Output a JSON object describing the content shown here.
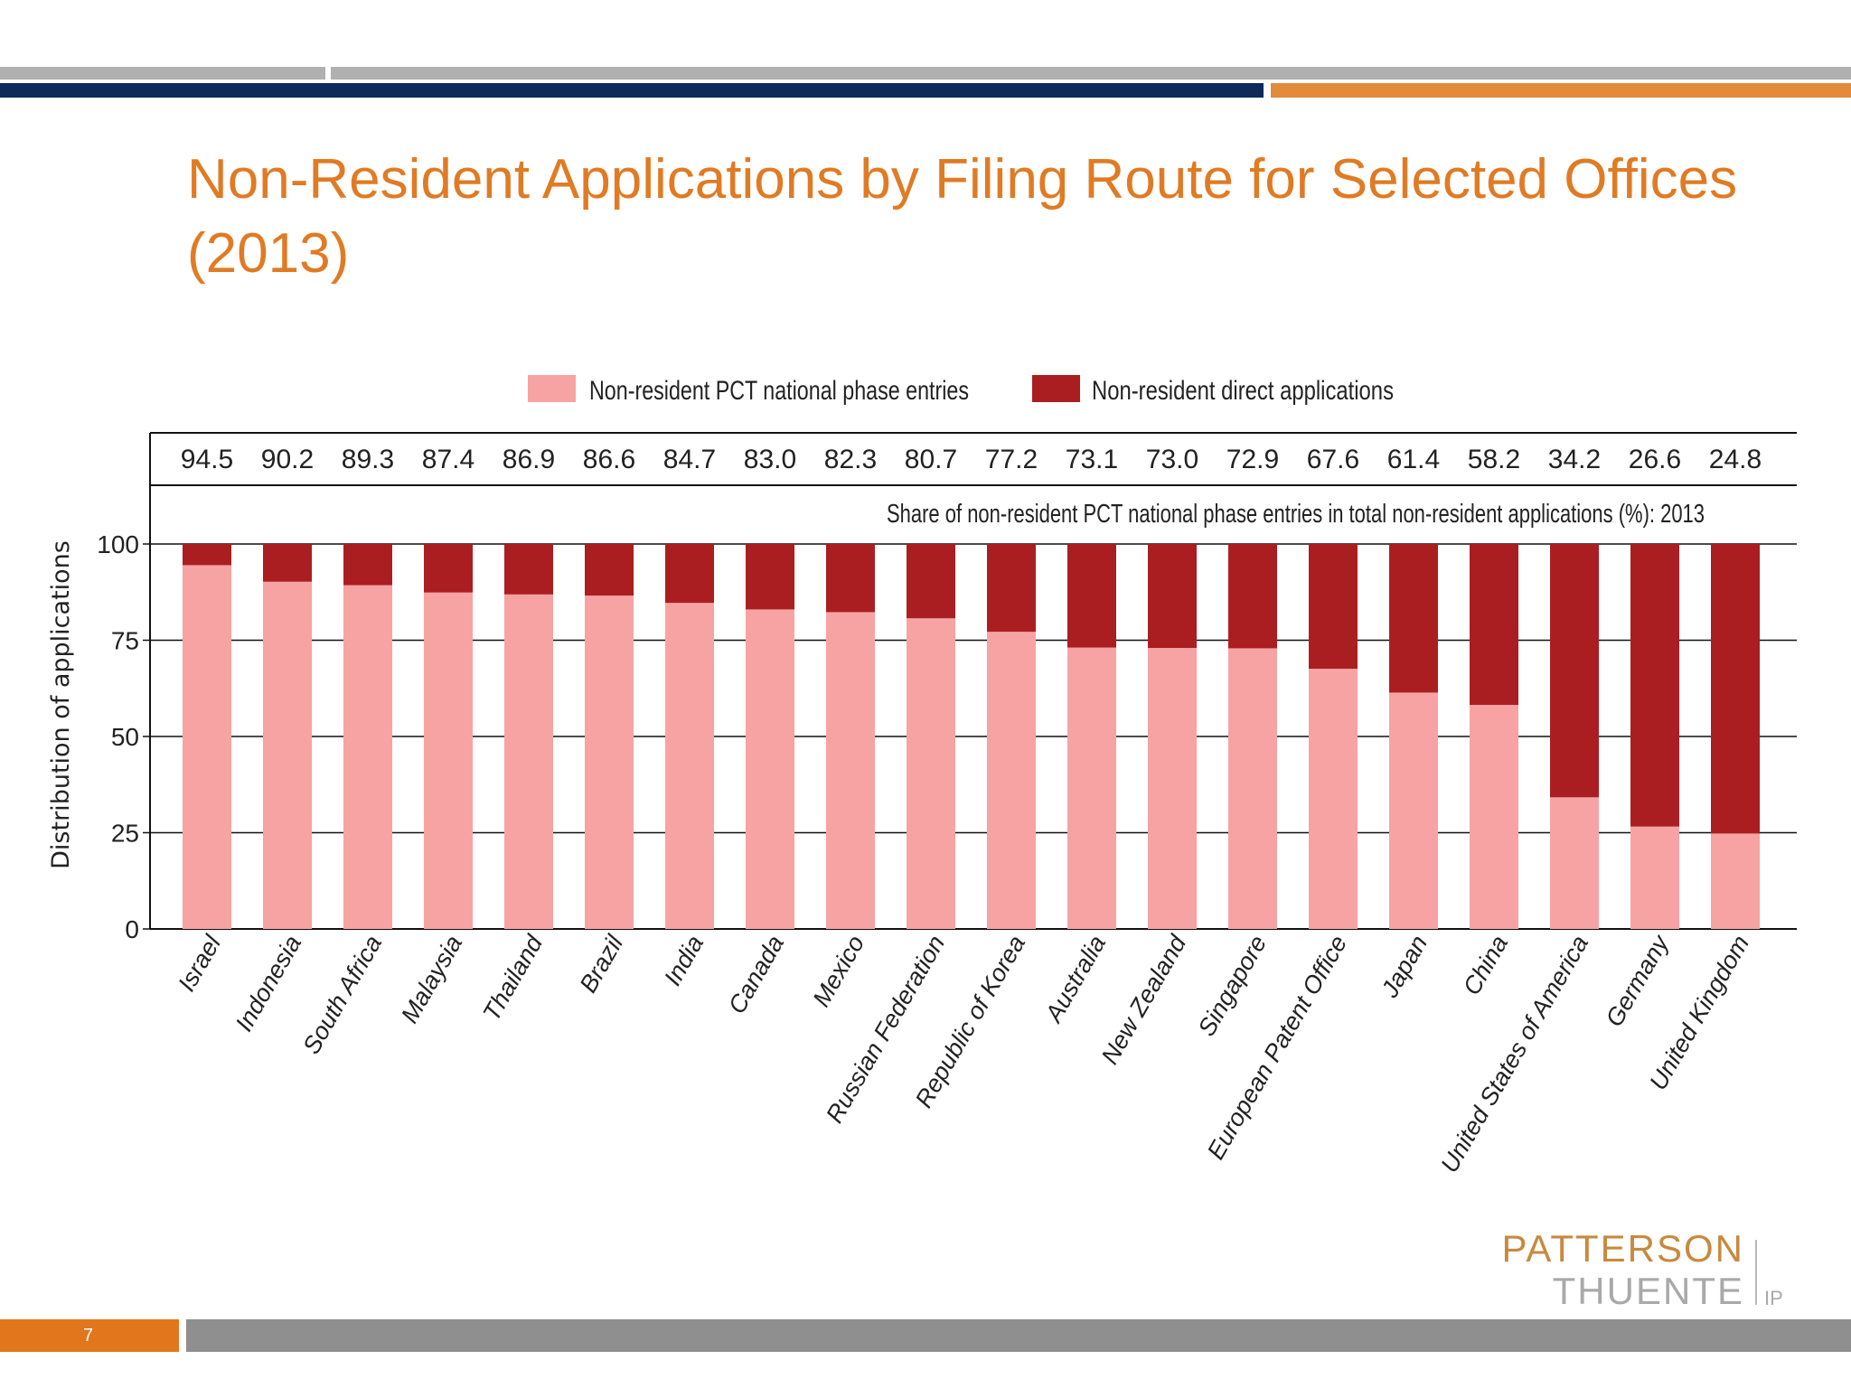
{
  "slide": {
    "title": "Non-Resident Applications by Filing Route for Selected Offices (2013)",
    "page_number": "7",
    "logo_line1": "PATTERSON",
    "logo_line2": "THUENTE",
    "logo_suffix": "IP"
  },
  "colors": {
    "title": "#e07b24",
    "band_gray": "#b0b0b0",
    "band_navy": "#0d2a5a",
    "band_orange": "#e38b3a",
    "pct_color": "#f7a3a3",
    "direct_color": "#aa1e22",
    "footer_gray": "#8f8f8f",
    "page_box": "#e2761c"
  },
  "chart_data": {
    "type": "bar",
    "stacked": true,
    "categories": [
      "Israel",
      "Indonesia",
      "South Africa",
      "Malaysia",
      "Thailand",
      "Brazil",
      "India",
      "Canada",
      "Mexico",
      "Russian Federation",
      "Republic of Korea",
      "Australia",
      "New Zealand",
      "Singapore",
      "European Patent Office",
      "Japan",
      "China",
      "United States of America",
      "Germany",
      "United Kingdom"
    ],
    "share_labels": [
      "94.5",
      "90.2",
      "89.3",
      "87.4",
      "86.9",
      "86.6",
      "84.7",
      "83.0",
      "82.3",
      "80.7",
      "77.2",
      "73.1",
      "73.0",
      "72.9",
      "67.6",
      "61.4",
      "58.2",
      "34.2",
      "26.6",
      "24.8"
    ],
    "share_caption": "Share of non-resident PCT national phase entries in total non-resident applications (%): 2013",
    "series": [
      {
        "name": "Non-resident PCT national phase entries",
        "color": "#f7a3a3",
        "values": [
          94.5,
          90.2,
          89.3,
          87.4,
          86.9,
          86.6,
          84.7,
          83.0,
          82.3,
          80.7,
          77.2,
          73.1,
          73.0,
          72.9,
          67.6,
          61.4,
          58.2,
          34.2,
          26.6,
          24.8
        ]
      },
      {
        "name": "Non-resident direct applications",
        "color": "#aa1e22",
        "values": [
          5.5,
          9.8,
          10.7,
          12.6,
          13.1,
          13.4,
          15.3,
          17.0,
          17.7,
          19.3,
          22.8,
          26.9,
          27.0,
          27.1,
          32.4,
          38.6,
          41.8,
          65.8,
          73.4,
          75.2
        ]
      }
    ],
    "ylabel": "Distribution of applications",
    "xlabel": "",
    "ylim": [
      0,
      100
    ],
    "yticks": [
      0,
      25,
      50,
      75,
      100
    ],
    "grid": true,
    "legend": "top"
  }
}
